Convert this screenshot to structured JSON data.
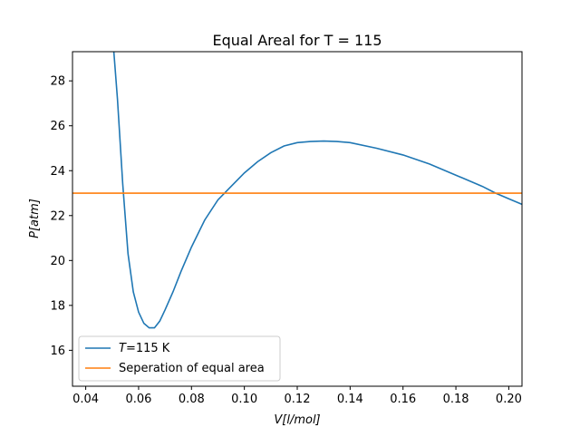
{
  "chart_data": {
    "type": "line",
    "title": "Equal Areal for T = 115",
    "xlabel_main": "V",
    "xlabel_unit": "[l/mol]",
    "ylabel_main": "P",
    "ylabel_unit": "[atm]",
    "xlim": [
      0.035,
      0.205
    ],
    "ylim": [
      14.4,
      29.3
    ],
    "xticks": [
      0.04,
      0.06,
      0.08,
      0.1,
      0.12,
      0.14,
      0.16,
      0.18,
      0.2
    ],
    "xtick_labels": [
      "0.04",
      "0.06",
      "0.08",
      "0.10",
      "0.12",
      "0.14",
      "0.16",
      "0.18",
      "0.20"
    ],
    "yticks": [
      16,
      18,
      20,
      22,
      24,
      26,
      28
    ],
    "ytick_labels": [
      "16",
      "18",
      "20",
      "22",
      "24",
      "26",
      "28"
    ],
    "grid": false,
    "legend_position": "lower-left",
    "series": [
      {
        "name_italic": "T",
        "name_rest": "=115 K",
        "color": "#1f77b4",
        "x": [
          0.0505,
          0.052,
          0.054,
          0.056,
          0.058,
          0.06,
          0.062,
          0.064,
          0.066,
          0.068,
          0.07,
          0.073,
          0.076,
          0.08,
          0.085,
          0.09,
          0.095,
          0.1,
          0.105,
          0.11,
          0.115,
          0.12,
          0.125,
          0.13,
          0.135,
          0.14,
          0.15,
          0.16,
          0.17,
          0.18,
          0.19,
          0.195,
          0.2,
          0.205
        ],
        "y": [
          29.5,
          27.2,
          23.4,
          20.3,
          18.6,
          17.7,
          17.2,
          17.0,
          17.0,
          17.3,
          17.8,
          18.6,
          19.5,
          20.6,
          21.8,
          22.7,
          23.3,
          23.9,
          24.4,
          24.8,
          25.1,
          25.25,
          25.3,
          25.32,
          25.3,
          25.25,
          25.0,
          24.7,
          24.3,
          23.8,
          23.3,
          23.0,
          22.75,
          22.5
        ]
      },
      {
        "name": "Seperation of equal area",
        "color": "#ff7f0e",
        "x": [
          0.035,
          0.205
        ],
        "y": [
          23.0,
          23.0
        ]
      }
    ]
  }
}
